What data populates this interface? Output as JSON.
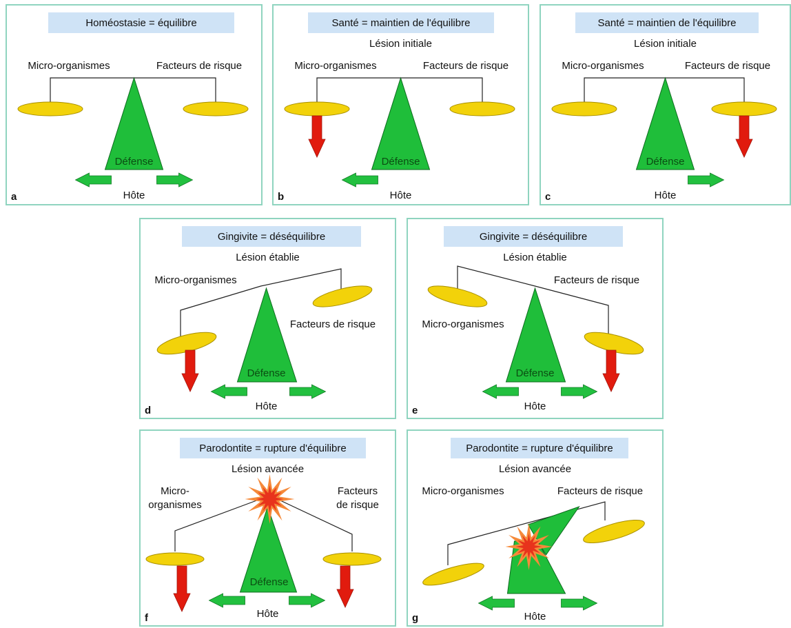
{
  "colors": {
    "panel_border": "#8fd4bf",
    "title_bg": "#cfe3f6",
    "pan": "#f2d20a",
    "pan_stroke": "#a88f00",
    "defense": "#1fbe3a",
    "arrow_red": "#e11b0e",
    "arrow_green": "#22c03f",
    "burst_outer": "#f58a3a",
    "burst_inner": "#e8331c"
  },
  "panels": [
    {
      "letter": "a",
      "title": "Homéostasie = équilibre",
      "subtitle": "",
      "left_label": [
        "Micro-organismes"
      ],
      "right_label": [
        "Facteurs de risque"
      ],
      "defense": "Défense",
      "host": "Hôte",
      "host_arrows": [
        "left",
        "right"
      ],
      "red_arrows": [],
      "state": "balanced"
    },
    {
      "letter": "b",
      "title": "Santé = maintien de l'équilibre",
      "subtitle": "Lésion initiale",
      "left_label": [
        "Micro-organismes"
      ],
      "right_label": [
        "Facteurs de risque"
      ],
      "defense": "Défense",
      "host": "Hôte",
      "host_arrows": [
        "left"
      ],
      "red_arrows": [
        "left"
      ],
      "state": "balanced"
    },
    {
      "letter": "c",
      "title": "Santé = maintien de l'équilibre",
      "subtitle": "Lésion initiale",
      "left_label": [
        "Micro-organismes"
      ],
      "right_label": [
        "Facteurs de risque"
      ],
      "defense": "Défense",
      "host": "Hôte",
      "host_arrows": [
        "right"
      ],
      "red_arrows": [
        "right"
      ],
      "state": "balanced"
    },
    {
      "letter": "d",
      "title": "Gingivite = déséquilibre",
      "subtitle": "Lésion établie",
      "left_label": [
        "Micro-organismes"
      ],
      "right_label": [
        "Facteurs de risque"
      ],
      "defense": "Défense",
      "host": "Hôte",
      "host_arrows": [
        "left",
        "right"
      ],
      "red_arrows": [
        "left"
      ],
      "state": "tilt-left"
    },
    {
      "letter": "e",
      "title": "Gingivite = déséquilibre",
      "subtitle": "Lésion établie",
      "left_label": [
        "Micro-organismes"
      ],
      "right_label": [
        "Facteurs de risque"
      ],
      "defense": "Défense",
      "host": "Hôte",
      "host_arrows": [
        "left",
        "right"
      ],
      "red_arrows": [
        "right"
      ],
      "state": "tilt-right"
    },
    {
      "letter": "f",
      "title": "Parodontite = rupture d'équilibre",
      "subtitle": "Lésion avancée",
      "left_label": [
        "Micro-",
        "organismes"
      ],
      "right_label": [
        "Facteurs",
        "de risque"
      ],
      "defense": "Défense",
      "host": "Hôte",
      "host_arrows": [
        "left",
        "right"
      ],
      "red_arrows": [
        "left",
        "right"
      ],
      "state": "rupture"
    },
    {
      "letter": "g",
      "title": "Parodontite = rupture d'équilibre",
      "subtitle": "Lésion avancée",
      "left_label": [
        "Micro-organismes"
      ],
      "right_label": [
        "Facteurs de risque"
      ],
      "defense": "",
      "host": "Hôte",
      "host_arrows": [
        "left",
        "right"
      ],
      "red_arrows": [],
      "state": "broken"
    }
  ]
}
